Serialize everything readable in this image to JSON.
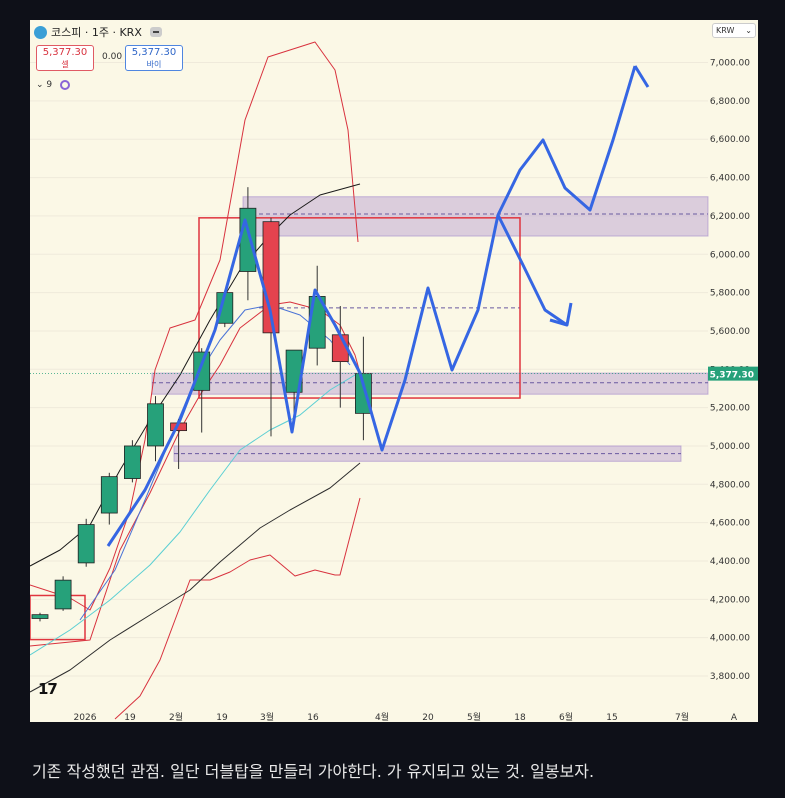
{
  "header": {
    "symbol": "코스피 · 1주 · KRX",
    "sell_price": "5,377.30",
    "sell_label": "셀",
    "buy_price": "5,377.30",
    "buy_label": "바이",
    "spread": "0.00",
    "interval": "9",
    "currency": "KRW",
    "logo_text": "17"
  },
  "caption": "기존 작성했던 관점. 일단 더블탑을 만들러 가야한다. 가 유지되고 있는 것. 일봉보자.",
  "chart_data": {
    "type": "candlestick",
    "y_ticks": [
      3800,
      4000,
      4200,
      4400,
      4600,
      4800,
      5000,
      5200,
      5400,
      5600,
      5800,
      6000,
      6200,
      6400,
      6600,
      6800,
      7000
    ],
    "y_tick_labels": [
      "3,800.00",
      "4,000.00",
      "4,200.00",
      "4,400.00",
      "4,600.00",
      "4,800.00",
      "5,000.00",
      "5,200.00",
      "5,400.00",
      "5,600.00",
      "5,800.00",
      "6,000.00",
      "6,200.00",
      "6,400.00",
      "6,600.00",
      "6,800.00",
      "7,000.00"
    ],
    "y_range": [
      3680,
      7290
    ],
    "x_tick_labels": [
      "2026",
      "19",
      "2월",
      "19",
      "3월",
      "16",
      "4월",
      "20",
      "5월",
      "18",
      "6월",
      "15",
      "7월",
      "A"
    ],
    "last_price_label": "5,377.30",
    "last_price": 5377.3,
    "candles": [
      {
        "o": 4100,
        "h": 4130,
        "l": 4085,
        "c": 4120
      },
      {
        "o": 4150,
        "h": 4320,
        "l": 4140,
        "c": 4300
      },
      {
        "o": 4390,
        "h": 4620,
        "l": 4370,
        "c": 4590
      },
      {
        "o": 4650,
        "h": 4860,
        "l": 4590,
        "c": 4840
      },
      {
        "o": 4830,
        "h": 5030,
        "l": 4810,
        "c": 5000
      },
      {
        "o": 5000,
        "h": 5260,
        "l": 4920,
        "c": 5220
      },
      {
        "o": 5120,
        "h": 5140,
        "l": 4880,
        "c": 5080
      },
      {
        "o": 5290,
        "h": 5510,
        "l": 5070,
        "c": 5490
      },
      {
        "o": 5640,
        "h": 5810,
        "l": 5620,
        "c": 5800
      },
      {
        "o": 5910,
        "h": 6350,
        "l": 5760,
        "c": 6240
      },
      {
        "o": 6170,
        "h": 6190,
        "l": 5050,
        "c": 5590
      },
      {
        "o": 5280,
        "h": 5500,
        "l": 5150,
        "c": 5500
      },
      {
        "o": 5510,
        "h": 5940,
        "l": 5420,
        "c": 5780
      },
      {
        "o": 5580,
        "h": 5730,
        "l": 5200,
        "c": 5440
      },
      {
        "o": 5170,
        "h": 5570,
        "l": 5030,
        "c": 5377.3
      }
    ],
    "zones": [
      {
        "from": 6095,
        "to": 6300
      },
      {
        "from": 5270,
        "to": 5380
      },
      {
        "from": 4920,
        "to": 5000
      }
    ],
    "dashed_levels": [
      6210,
      5330,
      4960,
      5720
    ]
  }
}
